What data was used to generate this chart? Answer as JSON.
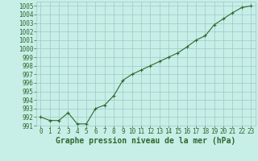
{
  "x": [
    0,
    1,
    2,
    3,
    4,
    5,
    6,
    7,
    8,
    9,
    10,
    11,
    12,
    13,
    14,
    15,
    16,
    17,
    18,
    19,
    20,
    21,
    22,
    23
  ],
  "y": [
    992.0,
    991.6,
    991.6,
    992.5,
    991.2,
    991.2,
    993.0,
    993.4,
    994.5,
    996.3,
    997.0,
    997.5,
    998.0,
    998.5,
    999.0,
    999.5,
    1000.2,
    1001.0,
    1001.5,
    1002.8,
    1003.5,
    1004.2,
    1004.8,
    1005.0
  ],
  "line_color": "#2d6a2d",
  "marker": "+",
  "bg_color": "#c8eee8",
  "grid_color": "#96ccc4",
  "xlabel": "Graphe pression niveau de la mer (hPa)",
  "xlabel_color": "#2d6a2d",
  "tick_color": "#2d6a2d",
  "ylim": [
    991,
    1005.5
  ],
  "yticks": [
    991,
    992,
    993,
    994,
    995,
    996,
    997,
    998,
    999,
    1000,
    1001,
    1002,
    1003,
    1004,
    1005
  ],
  "xlim": [
    -0.5,
    23.5
  ],
  "xticks": [
    0,
    1,
    2,
    3,
    4,
    5,
    6,
    7,
    8,
    9,
    10,
    11,
    12,
    13,
    14,
    15,
    16,
    17,
    18,
    19,
    20,
    21,
    22,
    23
  ],
  "tick_fontsize": 5.5,
  "xlabel_fontsize": 7.0
}
